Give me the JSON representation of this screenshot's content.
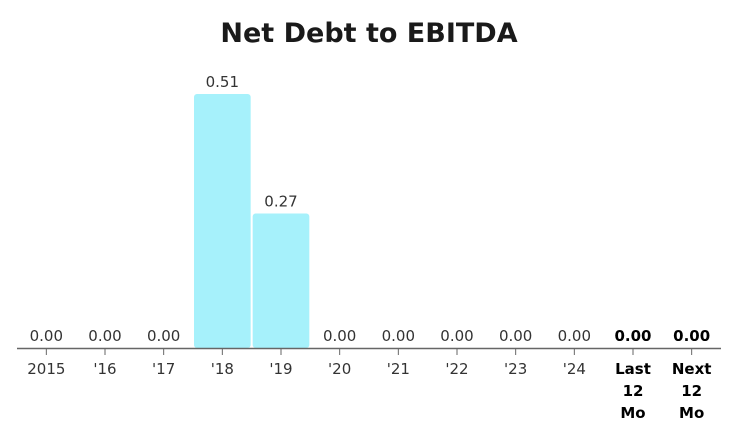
{
  "chart_data": {
    "type": "bar",
    "title": "Net Debt to EBITDA",
    "categories": [
      "2015",
      "'16",
      "'17",
      "'18",
      "'19",
      "'20",
      "'21",
      "'22",
      "'23",
      "'24",
      "Last 12 Mo",
      "Next 12 Mo"
    ],
    "category_lines": [
      [
        "2015"
      ],
      [
        "'16"
      ],
      [
        "'17"
      ],
      [
        "'18"
      ],
      [
        "'19"
      ],
      [
        "'20"
      ],
      [
        "'21"
      ],
      [
        "'22"
      ],
      [
        "'23"
      ],
      [
        "'24"
      ],
      [
        "Last",
        "12",
        "Mo"
      ],
      [
        "Next",
        "12",
        "Mo"
      ]
    ],
    "values": [
      0.0,
      0.0,
      0.0,
      0.51,
      0.27,
      0.0,
      0.0,
      0.0,
      0.0,
      0.0,
      0.0,
      0.0
    ],
    "value_labels": [
      "0.00",
      "0.00",
      "0.00",
      "0.51",
      "0.27",
      "0.00",
      "0.00",
      "0.00",
      "0.00",
      "0.00",
      "0.00",
      "0.00"
    ],
    "emphasized": [
      false,
      false,
      false,
      false,
      false,
      false,
      false,
      false,
      false,
      false,
      true,
      true
    ],
    "ylim": [
      0,
      0.51
    ],
    "grid": false,
    "bar_color": "#a6f1fb",
    "axis_color": "#666666"
  }
}
